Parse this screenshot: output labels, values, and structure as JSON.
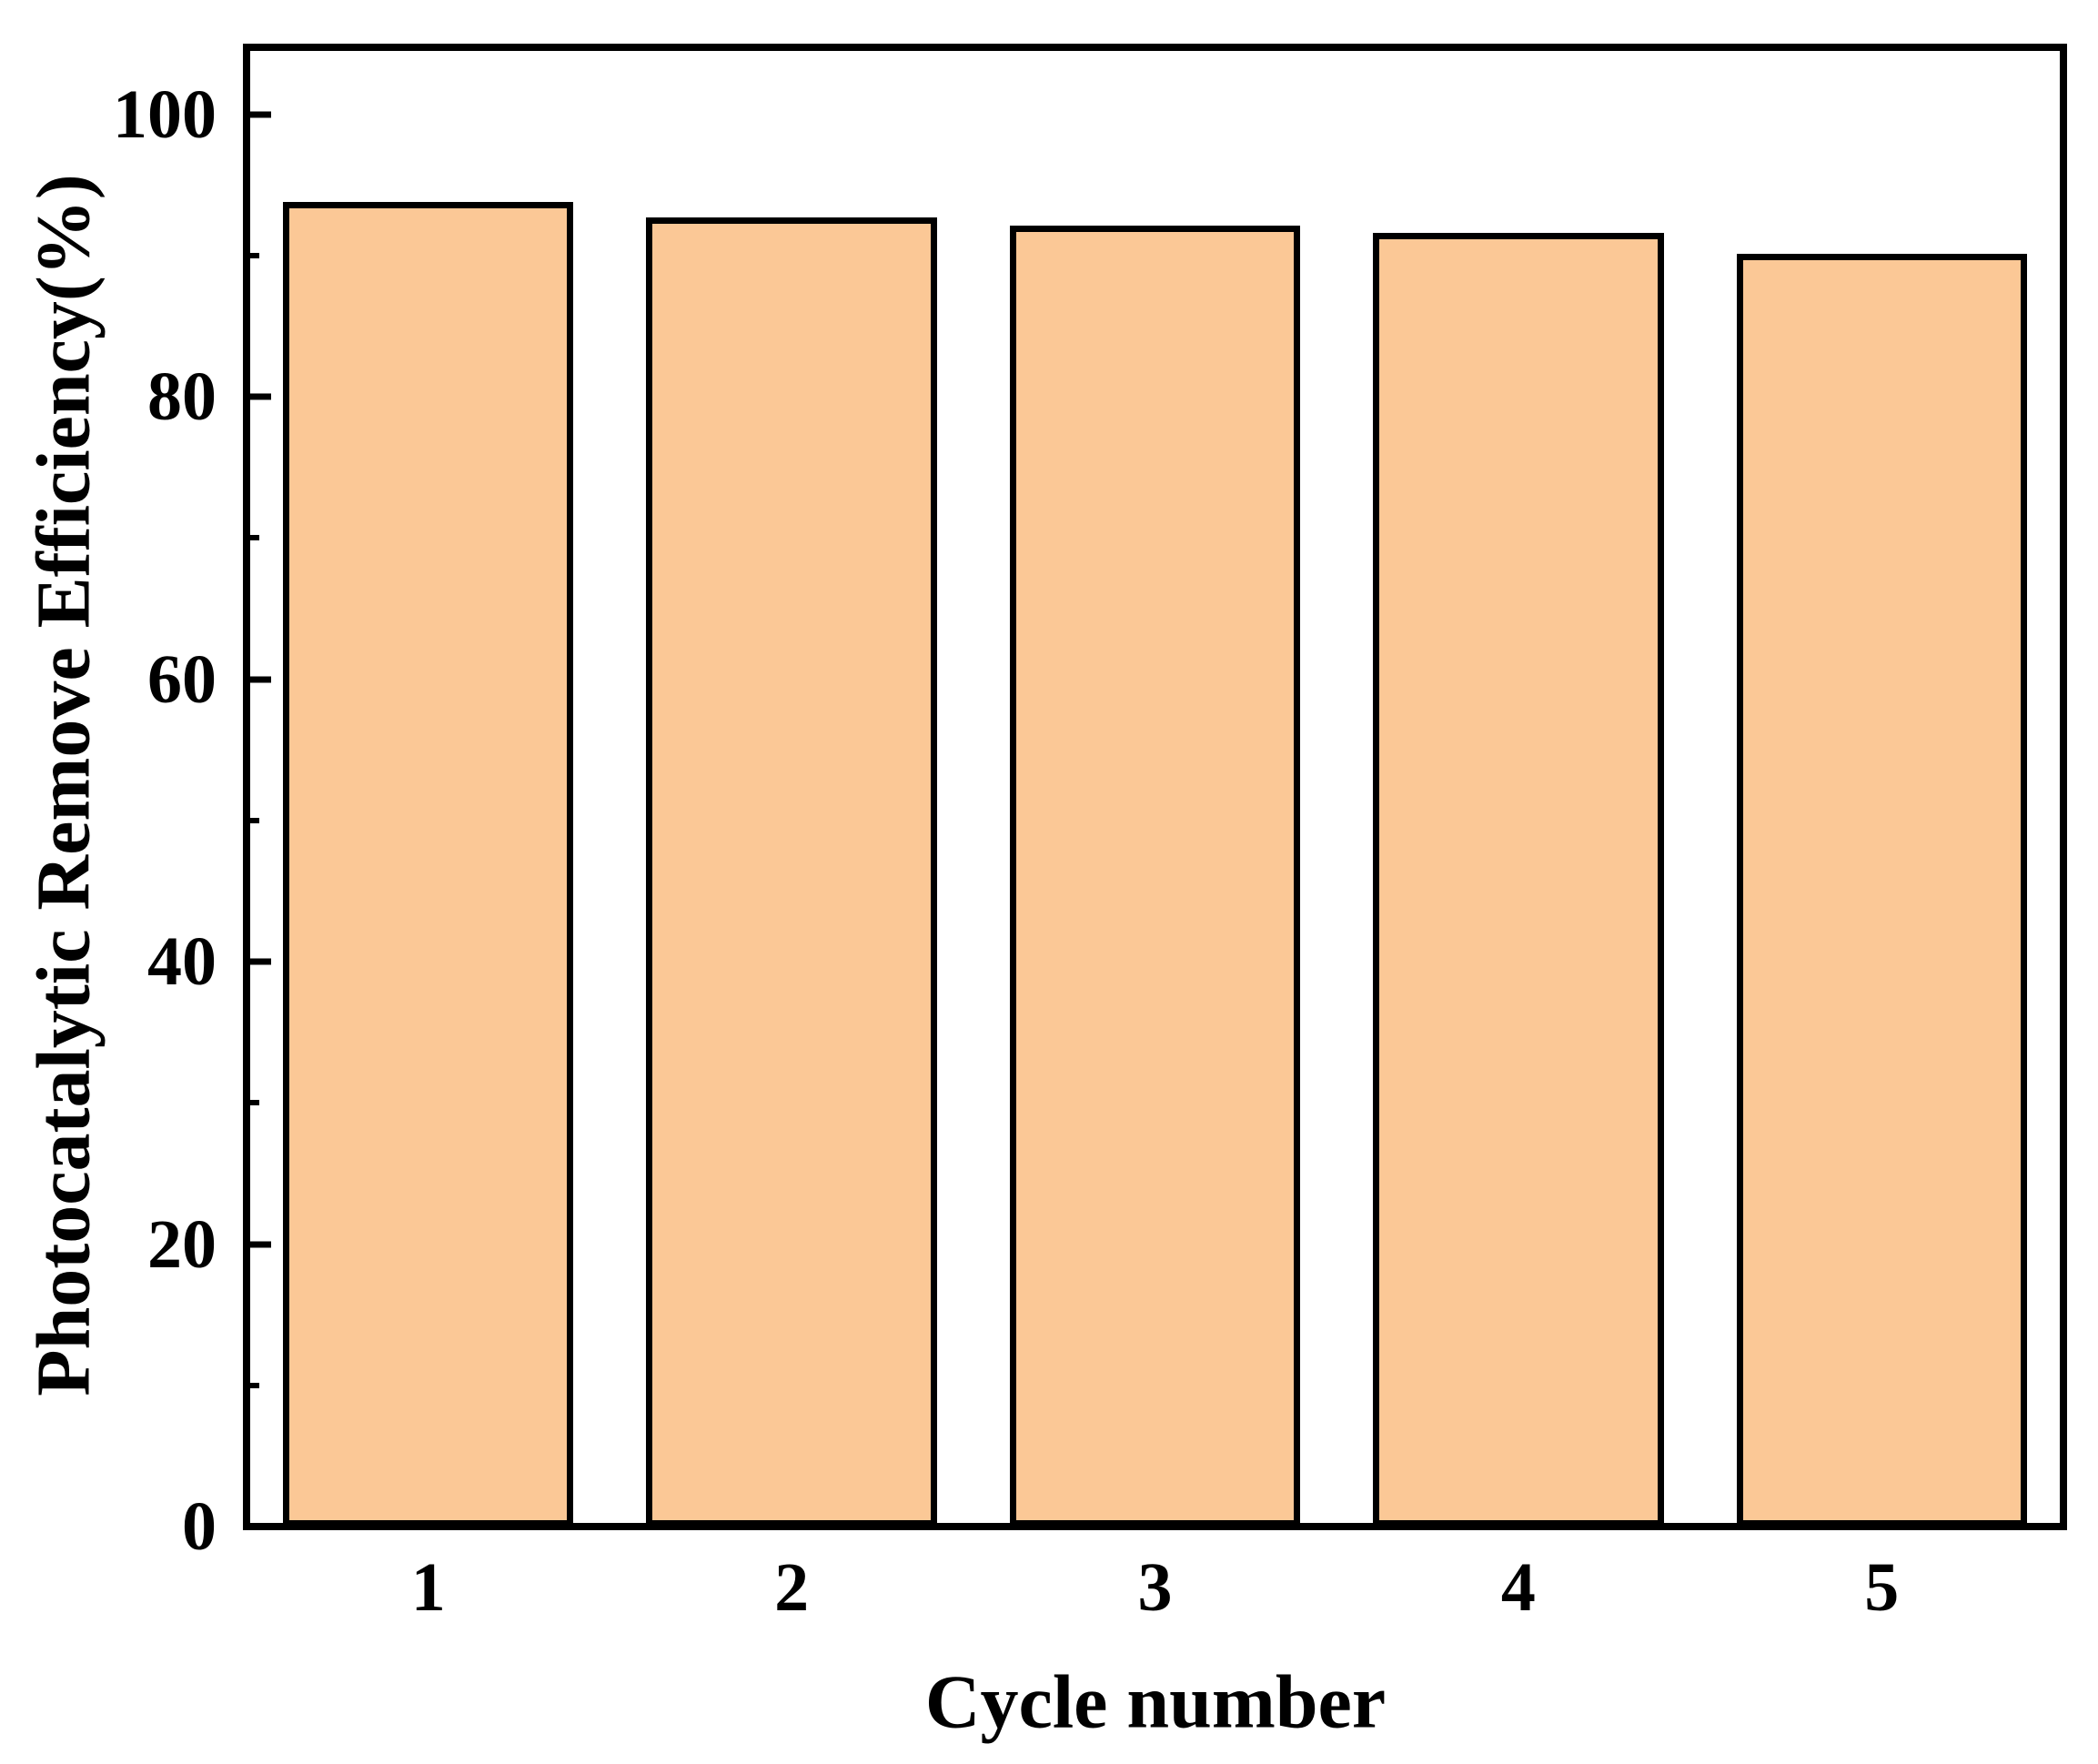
{
  "chart_data": {
    "type": "bar",
    "title": "",
    "categories": [
      "1",
      "2",
      "3",
      "4",
      "5"
    ],
    "values": [
      93.8,
      92.7,
      92.1,
      91.6,
      90.1
    ],
    "xlabel": "Cycle number",
    "ylabel": "Photocatalytic Remove Efficiency(%)",
    "ylim": [
      0,
      105
    ],
    "yticks": [
      0,
      20,
      40,
      60,
      80,
      100
    ],
    "ytick_labels": [
      "0",
      "20",
      "40",
      "60",
      "80",
      "100"
    ],
    "minor_yticks": [
      10,
      30,
      50,
      70,
      90
    ],
    "grid": false,
    "legend": "none",
    "bar_fill_color": "#FBC896",
    "bar_edge_color": "#000000",
    "axis_color": "#000000",
    "background_color": "#FFFFFF",
    "bar_width_fraction": 0.8
  }
}
